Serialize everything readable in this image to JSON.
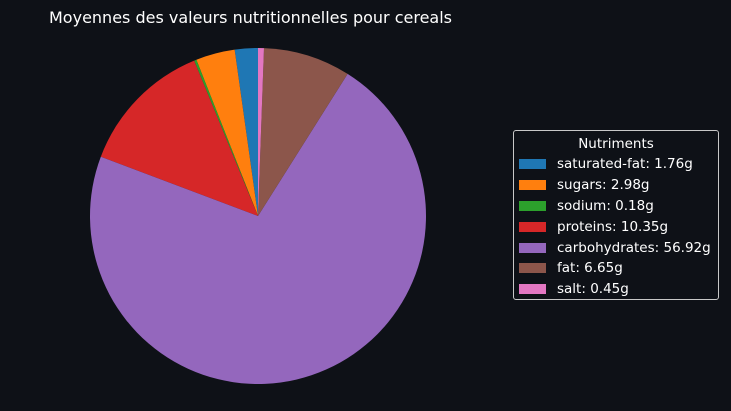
{
  "chart_data": {
    "type": "pie",
    "title": "Moyennes des valeurs nutritionnelles pour cereals",
    "legend_title": "Nutriments",
    "legend_placement": "right",
    "slices": [
      {
        "name": "saturated-fat",
        "value": 1.76,
        "label": "saturated-fat: 1.76g",
        "color": "#1f77b4"
      },
      {
        "name": "sugars",
        "value": 2.98,
        "label": "sugars: 2.98g",
        "color": "#ff7f0e"
      },
      {
        "name": "sodium",
        "value": 0.18,
        "label": "sodium: 0.18g",
        "color": "#2ca02c"
      },
      {
        "name": "proteins",
        "value": 10.35,
        "label": "proteins: 10.35g",
        "color": "#d62728"
      },
      {
        "name": "carbohydrates",
        "value": 56.92,
        "label": "carbohydrates: 56.92g",
        "color": "#9467bd"
      },
      {
        "name": "fat",
        "value": 6.65,
        "label": "fat: 6.65g",
        "color": "#8c564b"
      },
      {
        "name": "salt",
        "value": 0.45,
        "label": "salt: 0.45g",
        "color": "#e377c2"
      }
    ]
  }
}
